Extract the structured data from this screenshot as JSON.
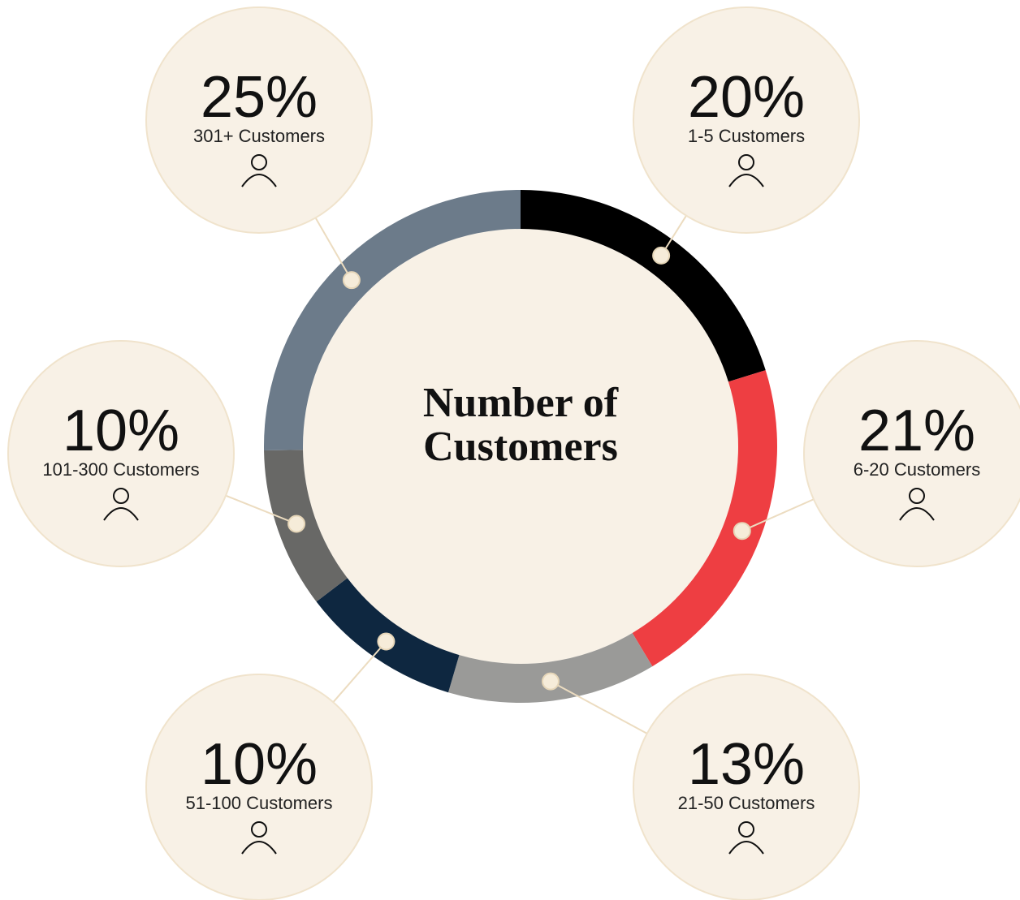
{
  "chart_data": {
    "type": "pie",
    "title": "Number of Customers",
    "categories": [
      "1-5 Customers",
      "6-20 Customers",
      "21-50 Customers",
      "51-100 Customers",
      "101-300 Customers",
      "301+ Customers"
    ],
    "values": [
      20,
      21,
      13,
      10,
      10,
      25
    ],
    "value_labels": [
      "20%",
      "21%",
      "13%",
      "10%",
      "10%",
      "25%"
    ],
    "colors": [
      "#000000",
      "#ee3e42",
      "#9a9a98",
      "#0e2740",
      "#686866",
      "#6c7b8a"
    ]
  }
}
